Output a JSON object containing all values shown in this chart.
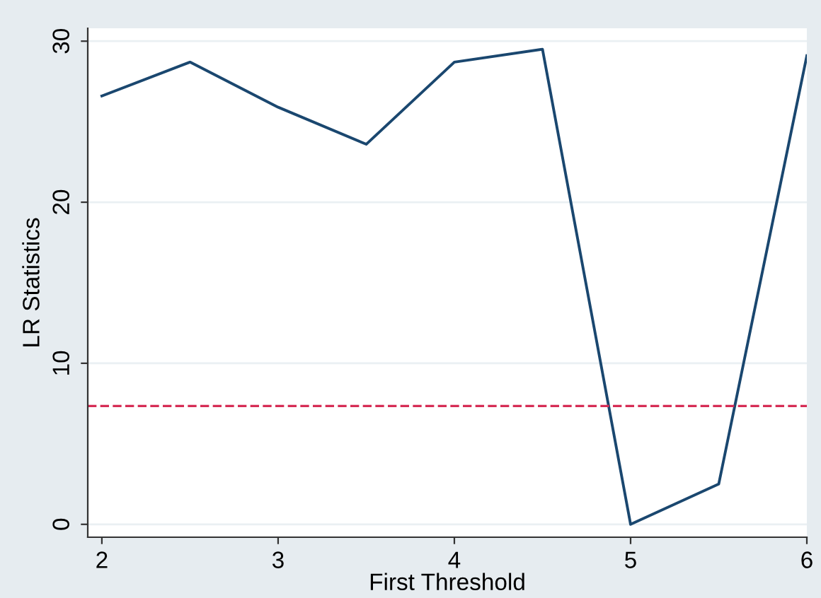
{
  "chart_data": {
    "type": "line",
    "xlabel": "First Threshold",
    "ylabel": "LR Statistics",
    "x": [
      2,
      2.5,
      3,
      3.5,
      4,
      4.5,
      5,
      5.5,
      6
    ],
    "series": [
      {
        "color": "#1a476f",
        "values": [
          26.6,
          28.7,
          25.9,
          23.6,
          28.7,
          29.5,
          0,
          2.5,
          29.1
        ]
      }
    ],
    "xlim": [
      1.92,
      6
    ],
    "ylim": [
      -0.8,
      30.8
    ],
    "xticks": [
      2,
      3,
      4,
      5,
      6
    ],
    "yticks": [
      0,
      10,
      20,
      30
    ],
    "grid": "y",
    "marker": "none",
    "line_style": "solid",
    "ref_lines": [
      {
        "axis": "y",
        "value": 7.35,
        "color": "#d62d55",
        "line_style": "dashed"
      }
    ]
  }
}
